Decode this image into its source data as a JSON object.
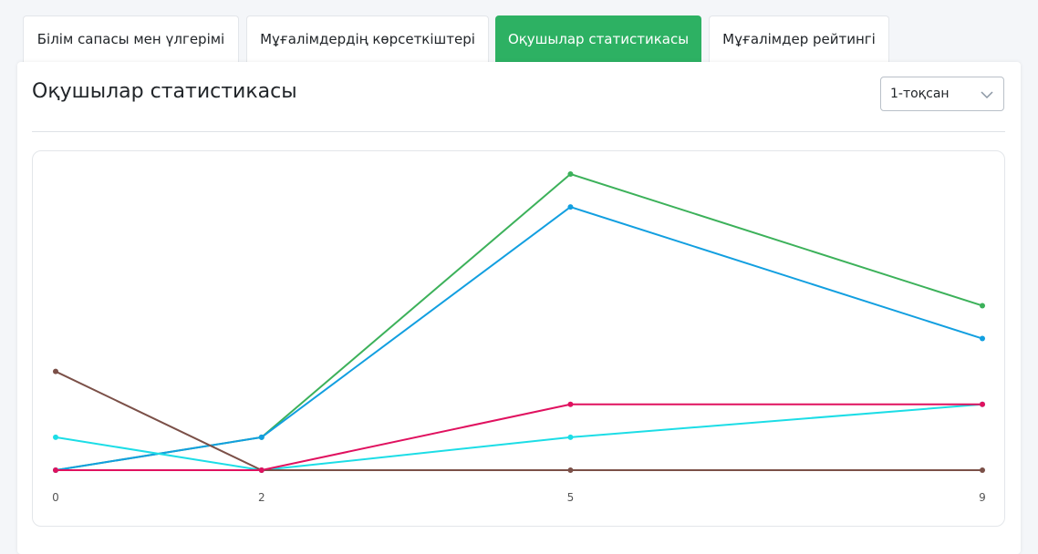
{
  "tabs": [
    {
      "label": "Білім сапасы мен үлгерімі",
      "active": false
    },
    {
      "label": "Мұғалімдердің көрсеткіштері",
      "active": false
    },
    {
      "label": "Оқушылар статистикасы",
      "active": true
    },
    {
      "label": "Мұғалімдер рейтингі",
      "active": false
    }
  ],
  "card": {
    "title": "Оқушылар статистикасы",
    "period_select": {
      "value": "1-тоқсан",
      "icon": "chevron-down-icon"
    }
  },
  "chart_data": {
    "type": "line",
    "x": [
      0,
      2,
      5,
      9
    ],
    "ylim": [
      0,
      9
    ],
    "grid": false,
    "legend": "none",
    "series": [
      {
        "color": "#3cb15a",
        "values": [
          0,
          1,
          9,
          5
        ]
      },
      {
        "color": "#129fe0",
        "values": [
          0,
          1,
          8,
          4
        ]
      },
      {
        "color": "#1cdde6",
        "values": [
          1,
          0,
          1,
          2
        ]
      },
      {
        "color": "#7b5048",
        "values": [
          3,
          0,
          0,
          0
        ]
      },
      {
        "color": "#e0115f",
        "values": [
          0,
          0,
          2,
          2
        ]
      }
    ]
  }
}
